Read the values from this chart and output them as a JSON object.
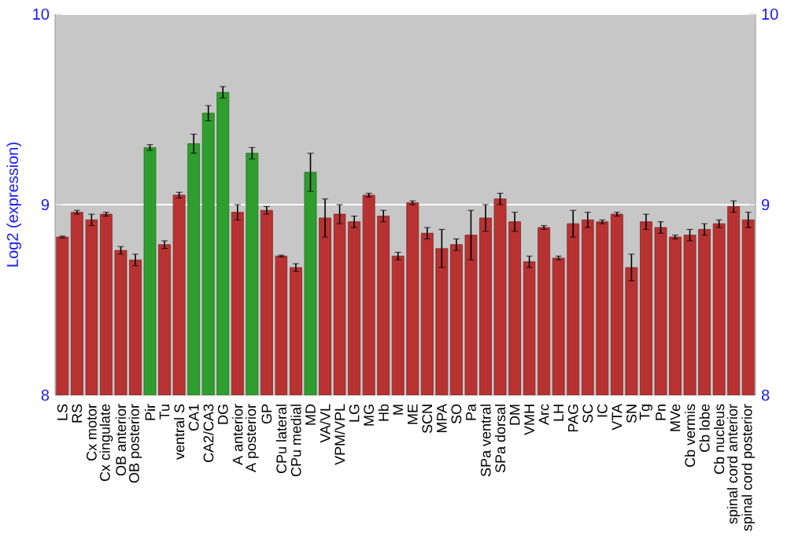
{
  "chart_data": {
    "type": "bar",
    "ylabel": "Log2 (expression)",
    "categories": [
      "LS",
      "RS",
      "Cx motor",
      "Cx cingulate",
      "OB anterior",
      "OB posterior",
      "Pir",
      "Tu",
      "ventral S",
      "CA1",
      "CA2/CA3",
      "DG",
      "A anterior",
      "A posterior",
      "GP",
      "CPu lateral",
      "CPu medial",
      "MD",
      "VA/VL",
      "VPM/VPL",
      "LG",
      "MG",
      "Hb",
      "M",
      "ME",
      "SCN",
      "MPA",
      "SO",
      "Pa",
      "SPa ventral",
      "SPa dorsal",
      "DM",
      "VMH",
      "Arc",
      "LH",
      "PAG",
      "SC",
      "IC",
      "VTA",
      "SN",
      "Tg",
      "Pn",
      "MVe",
      "Cb vermis",
      "Cb lobe",
      "Cb nucleus",
      "spinal cord anterior",
      "spinal cord posterior"
    ],
    "values": [
      8.83,
      8.96,
      8.92,
      8.95,
      8.76,
      8.71,
      9.3,
      8.79,
      9.05,
      9.32,
      9.48,
      9.59,
      8.96,
      9.27,
      8.97,
      8.73,
      8.67,
      9.17,
      8.93,
      8.95,
      8.91,
      9.05,
      8.94,
      8.73,
      9.01,
      8.85,
      8.77,
      8.79,
      8.84,
      8.93,
      9.03,
      8.91,
      8.7,
      8.88,
      8.72,
      8.9,
      8.92,
      8.91,
      8.95,
      8.67,
      8.91,
      8.88,
      8.83,
      8.84,
      8.87,
      8.9,
      8.99,
      8.92
    ],
    "errors": [
      0.005,
      0.01,
      0.03,
      0.01,
      0.02,
      0.03,
      0.015,
      0.02,
      0.015,
      0.05,
      0.04,
      0.03,
      0.04,
      0.03,
      0.02,
      0.005,
      0.02,
      0.1,
      0.1,
      0.05,
      0.03,
      0.01,
      0.03,
      0.02,
      0.01,
      0.03,
      0.1,
      0.03,
      0.13,
      0.07,
      0.03,
      0.05,
      0.03,
      0.01,
      0.01,
      0.07,
      0.04,
      0.01,
      0.01,
      0.07,
      0.04,
      0.03,
      0.01,
      0.03,
      0.03,
      0.02,
      0.03,
      0.04
    ],
    "colors": [
      "#b83232",
      "#b83232",
      "#b83232",
      "#b83232",
      "#b83232",
      "#b83232",
      "#2e9e2e",
      "#b83232",
      "#b83232",
      "#2e9e2e",
      "#2e9e2e",
      "#2e9e2e",
      "#b83232",
      "#2e9e2e",
      "#b83232",
      "#b83232",
      "#b83232",
      "#2e9e2e",
      "#b83232",
      "#b83232",
      "#b83232",
      "#b83232",
      "#b83232",
      "#b83232",
      "#b83232",
      "#b83232",
      "#b83232",
      "#b83232",
      "#b83232",
      "#b83232",
      "#b83232",
      "#b83232",
      "#b83232",
      "#b83232",
      "#b83232",
      "#b83232",
      "#b83232",
      "#b83232",
      "#b83232",
      "#b83232",
      "#b83232",
      "#b83232",
      "#b83232",
      "#b83232",
      "#b83232",
      "#b83232",
      "#b83232",
      "#b83232"
    ],
    "ylim": [
      8,
      10
    ],
    "yticks": [
      8,
      9,
      10
    ],
    "y2lim": [
      8,
      10
    ],
    "y2ticks": [
      8,
      9,
      10
    ],
    "grid": "y"
  }
}
